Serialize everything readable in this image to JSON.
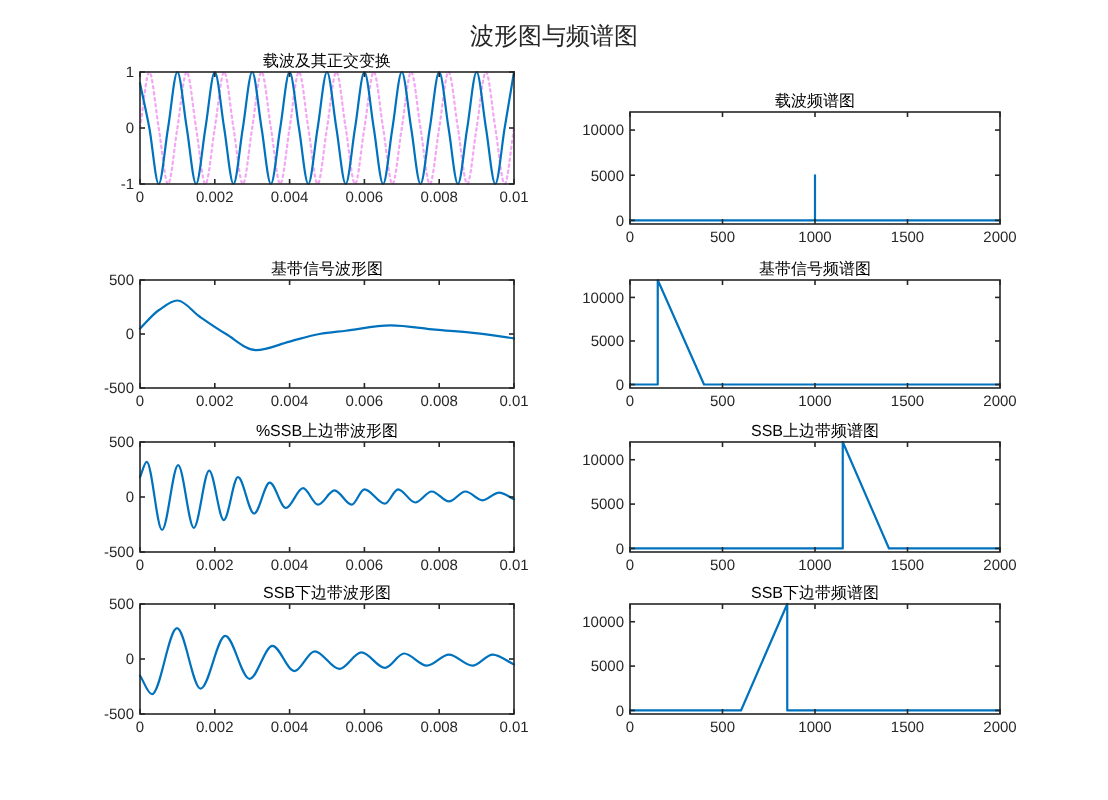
{
  "chart_data": [
    {
      "type": "line",
      "title": "波形图与频谱图",
      "subtitle": "载波及其正交变换",
      "xlim": [
        0,
        0.01
      ],
      "xticks": [
        0,
        0.002,
        0.004,
        0.006,
        0.008,
        0.01
      ],
      "ylim": [
        -1,
        1
      ],
      "yticks": [
        -1,
        0,
        1
      ],
      "grid": false,
      "series": [
        {
          "color": "#f4a6f4",
          "line_style": "dotted",
          "x": [
            0,
            0.00025,
            0.0005,
            0.00075,
            0.001,
            0.00125,
            0.0015,
            0.00175,
            0.002,
            0.00225,
            0.0025,
            0.00275,
            0.003,
            0.00325,
            0.0035,
            0.00375,
            0.004,
            0.00425,
            0.0045,
            0.00475,
            0.005,
            0.00525,
            0.0055,
            0.00575,
            0.006,
            0.00625,
            0.0065,
            0.00675,
            0.007,
            0.00725,
            0.0075,
            0.00775,
            0.008,
            0.00825,
            0.0085,
            0.00875,
            0.009,
            0.00925,
            0.0095,
            0.00975,
            0.01
          ],
          "values": [
            0,
            1,
            0,
            -1,
            0,
            1,
            0,
            -1,
            0,
            1,
            0,
            -1,
            0,
            1,
            0,
            -1,
            0,
            1,
            0,
            -1,
            0,
            1,
            0,
            -1,
            0,
            1,
            0,
            -1,
            0,
            1,
            0,
            -1,
            0,
            1,
            0,
            -1,
            0,
            1,
            0,
            -1,
            0
          ]
        },
        {
          "color": "#0072bd",
          "line_style": "solid",
          "x": [
            0,
            0.00025,
            0.0005,
            0.00075,
            0.001,
            0.00125,
            0.0015,
            0.00175,
            0.002,
            0.00225,
            0.0025,
            0.00275,
            0.003,
            0.00325,
            0.0035,
            0.00375,
            0.004,
            0.00425,
            0.0045,
            0.00475,
            0.005,
            0.00525,
            0.0055,
            0.00575,
            0.006,
            0.00625,
            0.0065,
            0.00675,
            0.007,
            0.00725,
            0.0075,
            0.00775,
            0.008,
            0.00825,
            0.0085,
            0.00875,
            0.009,
            0.00925,
            0.0095,
            0.00975,
            0.01
          ],
          "values": [
            0.8,
            0,
            -1,
            0,
            1,
            0,
            -1,
            0,
            1,
            0,
            -1,
            0,
            1,
            0,
            -1,
            0,
            1,
            0,
            -1,
            0,
            1,
            0,
            -1,
            0,
            1,
            0,
            -1,
            0,
            1,
            0,
            -1,
            0,
            1,
            0,
            -1,
            0,
            1,
            0,
            -1,
            0,
            1
          ]
        }
      ]
    },
    {
      "type": "line",
      "title": "载波频谱图",
      "xlim": [
        0,
        2000
      ],
      "xticks": [
        0,
        500,
        1000,
        1500,
        2000
      ],
      "ylim": [
        -400,
        12000
      ],
      "yticks": [
        0,
        5000,
        10000
      ],
      "grid": false,
      "series": [
        {
          "color": "#0072bd",
          "x": [
            0,
            1000,
            1000,
            1000,
            2000
          ],
          "values": [
            0,
            0,
            5000,
            0,
            0
          ]
        }
      ]
    },
    {
      "type": "line",
      "title": "基带信号波形图",
      "xlim": [
        0,
        0.01
      ],
      "xticks": [
        0,
        0.002,
        0.004,
        0.006,
        0.008,
        0.01
      ],
      "ylim": [
        -500,
        500
      ],
      "yticks": [
        -500,
        0,
        500
      ],
      "grid": false,
      "series": [
        {
          "color": "#0072bd",
          "x": [
            0,
            0.0005,
            0.001,
            0.0016,
            0.0023,
            0.0031,
            0.004,
            0.0048,
            0.0055,
            0.0067,
            0.0079,
            0.0089,
            0.01
          ],
          "values": [
            50,
            220,
            310,
            160,
            0,
            -150,
            -70,
            0,
            30,
            80,
            40,
            10,
            -40
          ]
        }
      ]
    },
    {
      "type": "line",
      "title": "基带信号频谱图",
      "xlim": [
        0,
        2000
      ],
      "xticks": [
        0,
        500,
        1000,
        1500,
        2000
      ],
      "ylim": [
        -400,
        12000
      ],
      "yticks": [
        0,
        5000,
        10000
      ],
      "grid": false,
      "series": [
        {
          "color": "#0072bd",
          "x": [
            0,
            150,
            150,
            400,
            2000
          ],
          "values": [
            0,
            0,
            12000,
            0,
            0
          ]
        }
      ]
    },
    {
      "type": "line",
      "title": "%SSB上边带波形图",
      "xlim": [
        0,
        0.01
      ],
      "xticks": [
        0,
        0.002,
        0.004,
        0.006,
        0.008,
        0.01
      ],
      "ylim": [
        -500,
        500
      ],
      "yticks": [
        -500,
        0,
        500
      ],
      "grid": false,
      "series": [
        {
          "color": "#0072bd",
          "x": [
            0,
            0.00018,
            0.00059,
            0.00102,
            0.00144,
            0.00185,
            0.00224,
            0.00262,
            0.00305,
            0.00347,
            0.0039,
            0.00436,
            0.00476,
            0.0052,
            0.00566,
            0.006,
            0.00655,
            0.0069,
            0.00736,
            0.0078,
            0.00826,
            0.0087,
            0.00916,
            0.0096,
            0.01
          ],
          "values": [
            180,
            320,
            -300,
            290,
            -280,
            240,
            -210,
            180,
            -150,
            130,
            -100,
            80,
            -70,
            60,
            -70,
            70,
            -60,
            70,
            -50,
            50,
            -40,
            50,
            -30,
            40,
            -20
          ]
        }
      ]
    },
    {
      "type": "line",
      "title": "SSB上边带频谱图",
      "xlim": [
        0,
        2000
      ],
      "xticks": [
        0,
        500,
        1000,
        1500,
        2000
      ],
      "ylim": [
        -400,
        12000
      ],
      "yticks": [
        0,
        5000,
        10000
      ],
      "grid": false,
      "series": [
        {
          "color": "#0072bd",
          "x": [
            0,
            1150,
            1150,
            1400,
            2000
          ],
          "values": [
            0,
            0,
            12000,
            0,
            0
          ]
        }
      ]
    },
    {
      "type": "line",
      "title": "SSB下边带波形图",
      "xlim": [
        0,
        0.01
      ],
      "xticks": [
        0,
        0.002,
        0.004,
        0.006,
        0.008,
        0.01
      ],
      "ylim": [
        -500,
        500
      ],
      "yticks": [
        -500,
        0,
        500
      ],
      "grid": false,
      "series": [
        {
          "color": "#0072bd",
          "x": [
            0,
            0.00032,
            0.00099,
            0.00162,
            0.00228,
            0.00293,
            0.00354,
            0.00413,
            0.00467,
            0.00533,
            0.00592,
            0.00655,
            0.00706,
            0.00767,
            0.00826,
            0.00889,
            0.00943,
            0.01
          ],
          "values": [
            -150,
            -320,
            280,
            -270,
            210,
            -180,
            120,
            -110,
            70,
            -90,
            60,
            -80,
            50,
            -60,
            40,
            -60,
            40,
            -50
          ]
        }
      ]
    },
    {
      "type": "line",
      "title": "SSB下边带频谱图",
      "xlim": [
        0,
        2000
      ],
      "xticks": [
        0,
        500,
        1000,
        1500,
        2000
      ],
      "ylim": [
        -400,
        12000
      ],
      "yticks": [
        0,
        5000,
        10000
      ],
      "grid": false,
      "series": [
        {
          "color": "#0072bd",
          "x": [
            0,
            600,
            850,
            850,
            2000
          ],
          "values": [
            0,
            0,
            12000,
            0,
            0
          ]
        }
      ]
    }
  ]
}
